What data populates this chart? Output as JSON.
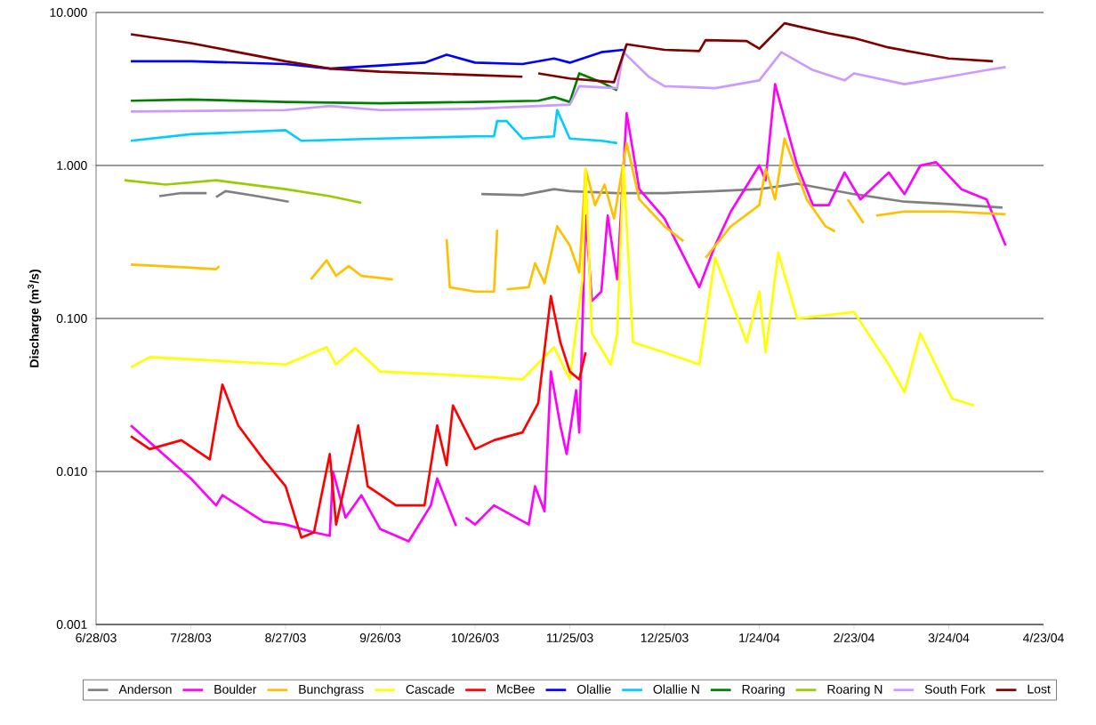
{
  "chart_data": {
    "type": "line",
    "ylabel": "Discharge (m$^{3}$/s)",
    "log": "y",
    "grid": "y",
    "legend": "bottom",
    "marker": "none",
    "line_style": "solid",
    "xlim": [
      "2003-06-28",
      "2004-04-23"
    ],
    "xticks": [
      {
        "value": "2003-06-28",
        "label": "6/28/03"
      },
      {
        "value": "2003-07-28",
        "label": "7/28/03"
      },
      {
        "value": "2003-08-27",
        "label": "8/27/03"
      },
      {
        "value": "2003-09-26",
        "label": "9/26/03"
      },
      {
        "value": "2003-10-26",
        "label": "10/26/03"
      },
      {
        "value": "2003-11-25",
        "label": "11/25/03"
      },
      {
        "value": "2003-12-25",
        "label": "12/25/03"
      },
      {
        "value": "2004-01-24",
        "label": "1/24/04"
      },
      {
        "value": "2004-02-23",
        "label": "2/23/04"
      },
      {
        "value": "2004-03-24",
        "label": "3/24/04"
      },
      {
        "value": "2004-04-23",
        "label": "4/23/04"
      }
    ],
    "ylim": [
      0.001,
      10
    ],
    "yticks": [
      {
        "value": 0.001,
        "label": "0.001"
      },
      {
        "value": 0.01,
        "label": "0.010"
      },
      {
        "value": 0.1,
        "label": "0.100"
      },
      {
        "value": 1,
        "label": "1.000"
      },
      {
        "value": 10,
        "label": "10.000"
      }
    ],
    "series": [
      {
        "name": "Anderson",
        "color": "#808080",
        "x": [
          "2003-07-18",
          "2003-07-25",
          "2003-08-02",
          "2003-08-03",
          "2003-08-05",
          "2003-08-08",
          "2003-08-18",
          "2003-08-28",
          "2003-08-29",
          "2003-10-28",
          "2003-11-10",
          "2003-11-20",
          "2003-11-25",
          "2003-12-10",
          "2003-12-25",
          "2004-01-10",
          "2004-01-24",
          "2004-02-05",
          "2004-02-23",
          "2004-03-10",
          "2004-03-24",
          "2004-04-10"
        ],
        "values": [
          0.63,
          0.66,
          0.66,
          null,
          0.62,
          0.68,
          0.63,
          0.58,
          null,
          0.65,
          0.64,
          0.7,
          0.68,
          0.66,
          0.66,
          0.68,
          0.7,
          0.76,
          0.65,
          0.58,
          0.56,
          0.53
        ]
      },
      {
        "name": "Boulder",
        "color": "#ff00ff",
        "x": [
          "2003-07-09",
          "2003-07-28",
          "2003-08-05",
          "2003-08-07",
          "2003-08-20",
          "2003-08-27",
          "2003-09-05",
          "2003-09-10",
          "2003-09-11",
          "2003-09-15",
          "2003-09-20",
          "2003-09-26",
          "2003-10-05",
          "2003-10-12",
          "2003-10-14",
          "2003-10-20",
          "2003-10-21",
          "2003-10-23",
          "2003-10-26",
          "2003-11-01",
          "2003-11-12",
          "2003-11-14",
          "2003-11-17",
          "2003-11-19",
          "2003-11-22",
          "2003-11-24",
          "2003-11-27",
          "2003-11-28",
          "2003-11-30",
          "2003-12-02",
          "2003-12-05",
          "2003-12-07",
          "2003-12-10",
          "2003-12-13",
          "2003-12-17",
          "2003-12-25",
          "2004-01-05",
          "2004-01-10",
          "2004-01-15",
          "2004-01-24",
          "2004-01-26",
          "2004-01-29",
          "2004-02-05",
          "2004-02-10",
          "2004-02-15",
          "2004-02-20",
          "2004-02-25",
          "2004-03-05",
          "2004-03-10",
          "2004-03-15",
          "2004-03-20",
          "2004-03-28",
          "2004-04-05",
          "2004-04-11"
        ],
        "values": [
          0.02,
          0.009,
          0.006,
          0.007,
          0.0047,
          0.0045,
          0.004,
          0.0038,
          0.01,
          0.005,
          0.007,
          0.0042,
          0.0035,
          0.006,
          0.009,
          0.0044,
          null,
          0.005,
          0.0045,
          0.006,
          0.0045,
          0.008,
          0.0055,
          0.045,
          0.02,
          0.013,
          0.034,
          0.018,
          0.47,
          0.13,
          0.15,
          0.47,
          0.18,
          2.2,
          0.7,
          0.45,
          0.16,
          0.3,
          0.5,
          1.0,
          0.8,
          3.4,
          1.0,
          0.55,
          0.55,
          0.9,
          0.6,
          0.9,
          0.65,
          1.0,
          1.05,
          0.7,
          0.6,
          0.3
        ]
      },
      {
        "name": "Bunchgrass",
        "color": "#ffc000",
        "x": [
          "2003-07-09",
          "2003-07-28",
          "2003-08-05",
          "2003-08-06",
          "2003-08-07",
          "2003-09-04",
          "2003-09-09",
          "2003-09-12",
          "2003-09-16",
          "2003-09-20",
          "2003-09-30",
          "2003-10-01",
          "2003-10-17",
          "2003-10-18",
          "2003-10-26",
          "2003-11-01",
          "2003-11-02",
          "2003-11-03",
          "2003-11-05",
          "2003-11-12",
          "2003-11-14",
          "2003-11-17",
          "2003-11-21",
          "2003-11-25",
          "2003-11-28",
          "2003-11-30",
          "2003-12-03",
          "2003-12-06",
          "2003-12-09",
          "2003-12-13",
          "2003-12-17",
          "2003-12-25",
          "2003-12-31",
          "2004-01-03",
          "2004-01-07",
          "2004-01-15",
          "2004-01-24",
          "2004-01-26",
          "2004-01-29",
          "2004-02-01",
          "2004-02-08",
          "2004-02-14",
          "2004-02-17",
          "2004-02-18",
          "2004-02-21",
          "2004-02-26",
          "2004-02-27",
          "2004-03-01",
          "2004-03-10",
          "2004-03-24",
          "2004-04-11"
        ],
        "values": [
          0.225,
          0.215,
          0.21,
          0.22,
          null,
          0.18,
          0.24,
          0.19,
          0.22,
          0.19,
          0.18,
          null,
          0.33,
          0.16,
          0.15,
          0.15,
          0.38,
          null,
          0.155,
          0.16,
          0.23,
          0.17,
          0.4,
          0.3,
          0.2,
          0.95,
          0.55,
          0.75,
          0.45,
          1.4,
          0.6,
          0.4,
          0.32,
          null,
          0.25,
          0.4,
          0.55,
          0.95,
          0.6,
          1.5,
          0.6,
          0.4,
          0.37,
          null,
          0.6,
          0.42,
          null,
          0.47,
          0.5,
          0.5,
          0.48
        ]
      },
      {
        "name": "Cascade",
        "color": "#ffff00",
        "x": [
          "2003-07-09",
          "2003-07-15",
          "2003-08-27",
          "2003-09-09",
          "2003-09-12",
          "2003-09-18",
          "2003-09-26",
          "2003-10-26",
          "2003-11-10",
          "2003-11-20",
          "2003-11-25",
          "2003-11-29",
          "2003-11-30",
          "2003-12-02",
          "2003-12-08",
          "2003-12-10",
          "2003-12-12",
          "2003-12-15",
          "2003-12-25",
          "2004-01-05",
          "2004-01-10",
          "2004-01-20",
          "2004-01-24",
          "2004-01-26",
          "2004-01-30",
          "2004-02-05",
          "2004-02-23",
          "2004-03-05",
          "2004-03-10",
          "2004-03-15",
          "2004-03-25",
          "2004-04-01"
        ],
        "values": [
          0.048,
          0.056,
          0.05,
          0.065,
          0.05,
          0.064,
          0.045,
          0.042,
          0.04,
          0.065,
          0.04,
          0.18,
          0.95,
          0.08,
          0.05,
          0.08,
          1.0,
          0.07,
          0.06,
          0.05,
          0.25,
          0.07,
          0.15,
          0.06,
          0.27,
          0.1,
          0.11,
          0.05,
          0.033,
          0.08,
          0.03,
          0.027
        ]
      },
      {
        "name": "McBee",
        "color": "#ff0000",
        "x": [
          "2003-07-09",
          "2003-07-15",
          "2003-07-25",
          "2003-08-03",
          "2003-08-07",
          "2003-08-12",
          "2003-08-20",
          "2003-08-27",
          "2003-09-01",
          "2003-09-05",
          "2003-09-10",
          "2003-09-12",
          "2003-09-19",
          "2003-09-22",
          "2003-10-01",
          "2003-10-10",
          "2003-10-14",
          "2003-10-17",
          "2003-10-19",
          "2003-10-26",
          "2003-11-01",
          "2003-11-10",
          "2003-11-15",
          "2003-11-19",
          "2003-11-22",
          "2003-11-25",
          "2003-11-28",
          "2003-11-30"
        ],
        "values": [
          0.017,
          0.014,
          0.016,
          0.012,
          0.037,
          0.02,
          0.012,
          0.008,
          0.0037,
          0.004,
          0.013,
          0.0045,
          0.02,
          0.008,
          0.006,
          0.006,
          0.02,
          0.011,
          0.027,
          0.014,
          0.016,
          0.018,
          0.028,
          0.14,
          0.07,
          0.045,
          0.04,
          0.06
        ]
      },
      {
        "name": "Olallie",
        "color": "#0000ff",
        "x": [
          "2003-07-09",
          "2003-07-28",
          "2003-08-27",
          "2003-09-10",
          "2003-09-26",
          "2003-10-10",
          "2003-10-17",
          "2003-10-26",
          "2003-11-10",
          "2003-11-20",
          "2003-11-25",
          "2003-12-05",
          "2003-12-12"
        ],
        "values": [
          4.8,
          4.8,
          4.6,
          4.3,
          4.5,
          4.7,
          5.3,
          4.7,
          4.6,
          5.0,
          4.7,
          5.5,
          5.7
        ]
      },
      {
        "name": "Olallie N",
        "color": "#00ccff",
        "x": [
          "2003-07-09",
          "2003-07-28",
          "2003-08-27",
          "2003-09-01",
          "2003-09-26",
          "2003-10-26",
          "2003-11-01",
          "2003-11-02",
          "2003-11-05",
          "2003-11-10",
          "2003-11-20",
          "2003-11-21",
          "2003-11-25",
          "2003-12-05",
          "2003-12-10"
        ],
        "values": [
          1.45,
          1.6,
          1.7,
          1.45,
          1.5,
          1.55,
          1.55,
          1.95,
          1.95,
          1.5,
          1.55,
          2.3,
          1.5,
          1.45,
          1.4
        ]
      },
      {
        "name": "Roaring",
        "color": "#008000",
        "x": [
          "2003-07-09",
          "2003-07-28",
          "2003-08-27",
          "2003-09-26",
          "2003-10-26",
          "2003-11-15",
          "2003-11-20",
          "2003-11-25",
          "2003-11-28",
          "2003-12-05",
          "2003-12-10"
        ],
        "values": [
          2.65,
          2.7,
          2.6,
          2.55,
          2.6,
          2.65,
          2.8,
          2.6,
          4.0,
          3.5,
          3.1
        ]
      },
      {
        "name": "Roaring N",
        "color": "#99cc00",
        "x": [
          "2003-07-07",
          "2003-07-20",
          "2003-08-05",
          "2003-08-27",
          "2003-09-10",
          "2003-09-20"
        ],
        "values": [
          0.8,
          0.75,
          0.8,
          0.7,
          0.63,
          0.57
        ]
      },
      {
        "name": "South Fork",
        "color": "#cc99ff",
        "x": [
          "2003-07-09",
          "2003-08-27",
          "2003-09-10",
          "2003-09-26",
          "2003-10-26",
          "2003-11-25",
          "2003-11-28",
          "2003-12-10",
          "2003-12-12",
          "2003-12-20",
          "2003-12-25",
          "2004-01-10",
          "2004-01-24",
          "2004-01-31",
          "2004-02-10",
          "2004-02-20",
          "2004-02-23",
          "2004-03-10",
          "2004-03-24",
          "2004-04-05",
          "2004-04-11"
        ],
        "values": [
          2.25,
          2.3,
          2.45,
          2.3,
          2.35,
          2.5,
          3.3,
          3.2,
          5.5,
          3.8,
          3.3,
          3.2,
          3.6,
          5.5,
          4.2,
          3.6,
          4.0,
          3.4,
          3.8,
          4.2,
          4.4
        ]
      },
      {
        "name": "Lost",
        "color": "#800000",
        "x": [
          "2003-07-09",
          "2003-07-28",
          "2003-08-10",
          "2003-08-27",
          "2003-09-10",
          "2003-09-26",
          "2003-10-26",
          "2003-11-10",
          "2003-11-12",
          "2003-11-15",
          "2003-11-25",
          "2003-12-09",
          "2003-12-13",
          "2003-12-25",
          "2004-01-05",
          "2004-01-07",
          "2004-01-20",
          "2004-01-24",
          "2004-02-01",
          "2004-02-15",
          "2004-02-23",
          "2004-03-05",
          "2004-03-24",
          "2004-04-07"
        ],
        "values": [
          7.2,
          6.3,
          5.6,
          4.8,
          4.3,
          4.1,
          3.9,
          3.8,
          null,
          4.0,
          3.7,
          3.5,
          6.2,
          5.7,
          5.6,
          6.6,
          6.5,
          5.8,
          8.5,
          7.3,
          6.8,
          5.9,
          5.0,
          4.8
        ]
      }
    ]
  }
}
